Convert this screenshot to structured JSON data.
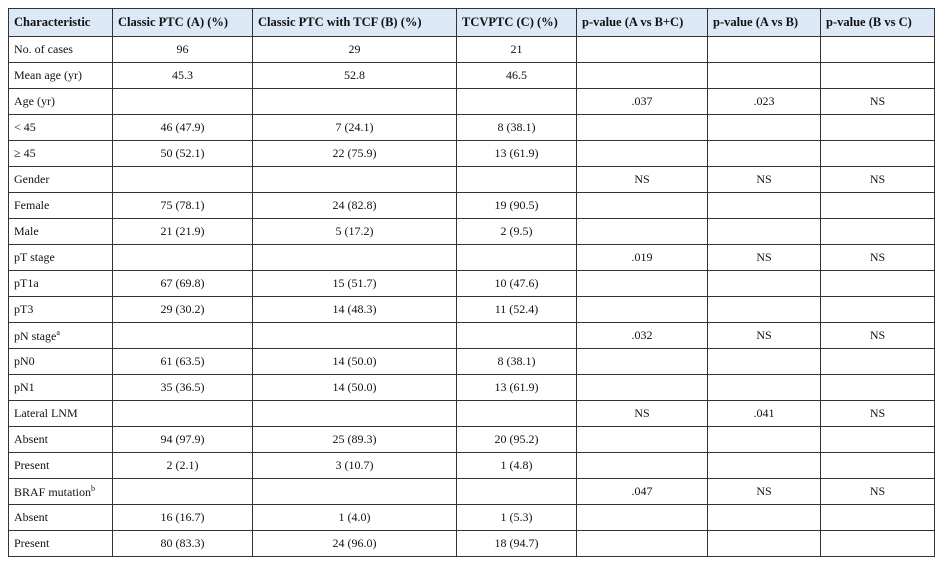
{
  "table": {
    "header": [
      "Characteristic",
      "Classic PTC (A) (%)",
      "Classic PTC with TCF (B) (%)",
      "TCVPTC (C) (%)",
      "p-value (A vs B+C)",
      "p-value (A vs B)",
      "p-value (B vs C)"
    ],
    "rows": [
      [
        {
          "text": "No. of cases"
        },
        "96",
        "29",
        "21",
        null,
        null,
        null
      ],
      [
        {
          "text": "Mean age (yr)"
        },
        "45.3",
        "52.8",
        "46.5",
        null,
        null,
        null
      ],
      [
        {
          "text": "Age (yr)"
        },
        null,
        null,
        null,
        ".037",
        ".023",
        "NS"
      ],
      [
        {
          "text": "< 45"
        },
        "46 (47.9)",
        "7 (24.1)",
        "8 (38.1)",
        null,
        null,
        null
      ],
      [
        {
          "text": "≥ 45"
        },
        "50 (52.1)",
        "22 (75.9)",
        "13 (61.9)",
        null,
        null,
        null
      ],
      [
        {
          "text": "Gender"
        },
        null,
        null,
        null,
        "NS",
        "NS",
        "NS"
      ],
      [
        {
          "text": "Female"
        },
        "75 (78.1)",
        "24 (82.8)",
        "19 (90.5)",
        null,
        null,
        null
      ],
      [
        {
          "text": "Male"
        },
        "21 (21.9)",
        "5 (17.2)",
        "2 (9.5)",
        null,
        null,
        null
      ],
      [
        {
          "text": "pT stage"
        },
        null,
        null,
        null,
        ".019",
        "NS",
        "NS"
      ],
      [
        {
          "text": "pT1a"
        },
        "67 (69.8)",
        "15 (51.7)",
        "10 (47.6)",
        null,
        null,
        null
      ],
      [
        {
          "text": "pT3"
        },
        "29 (30.2)",
        "14 (48.3)",
        "11 (52.4)",
        null,
        null,
        null
      ],
      [
        {
          "text": "pN stage",
          "sup": "a"
        },
        null,
        null,
        null,
        ".032",
        "NS",
        "NS"
      ],
      [
        {
          "text": "pN0"
        },
        "61 (63.5)",
        "14 (50.0)",
        "8 (38.1)",
        null,
        null,
        null
      ],
      [
        {
          "text": "pN1"
        },
        "35 (36.5)",
        "14 (50.0)",
        "13 (61.9)",
        null,
        null,
        null
      ],
      [
        {
          "text": "Lateral LNM"
        },
        null,
        null,
        null,
        "NS",
        ".041",
        "NS"
      ],
      [
        {
          "text": "Absent"
        },
        "94 (97.9)",
        "25 (89.3)",
        "20 (95.2)",
        null,
        null,
        null
      ],
      [
        {
          "text": "Present"
        },
        "2 (2.1)",
        "3 (10.7)",
        "1 (4.8)",
        null,
        null,
        null
      ],
      [
        {
          "text": "BRAF mutation",
          "sup": "b"
        },
        null,
        null,
        null,
        ".047",
        "NS",
        "NS"
      ],
      [
        {
          "text": "Absent"
        },
        "16 (16.7)",
        "1 (4.0)",
        "1 (5.3)",
        null,
        null,
        null
      ],
      [
        {
          "text": "Present"
        },
        "80 (83.3)",
        "24 (96.0)",
        "18 (94.7)",
        null,
        null,
        null
      ]
    ]
  }
}
